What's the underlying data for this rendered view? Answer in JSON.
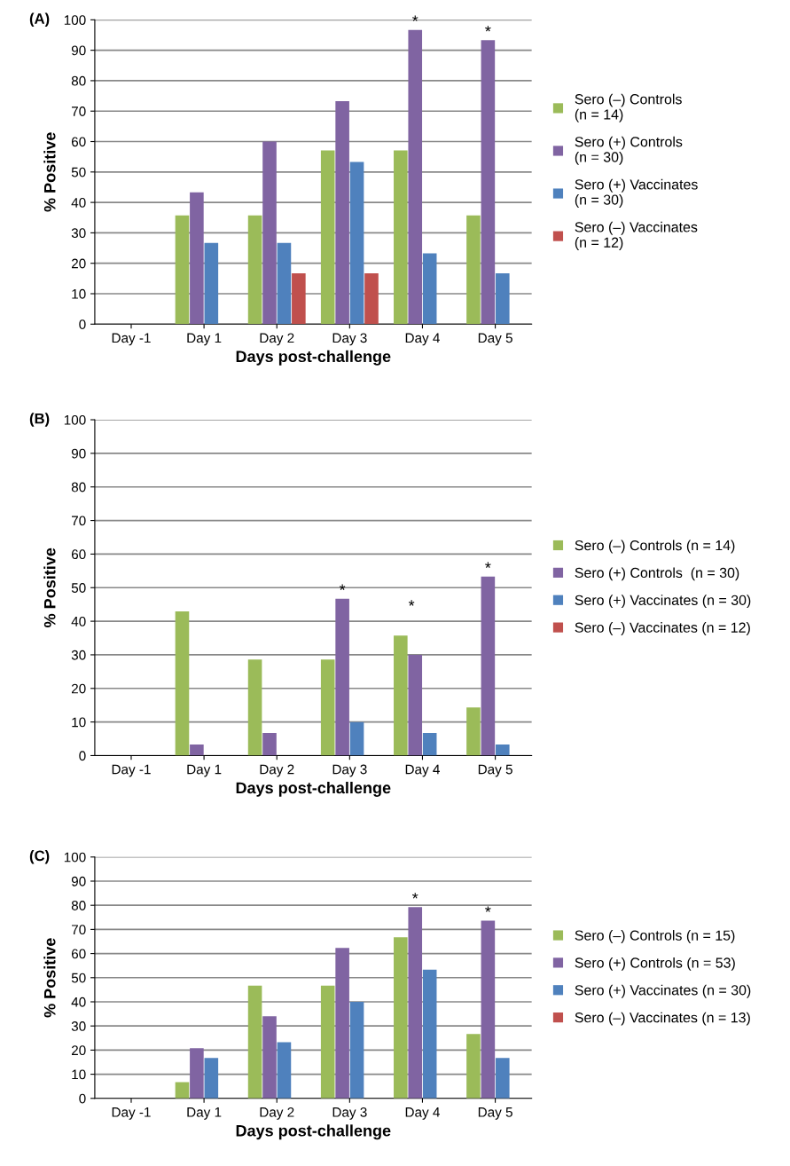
{
  "chart_data": [
    {
      "type": "bar",
      "title": "(A)",
      "xlabel": "Days post-challenge",
      "ylabel": "% Positive",
      "categories": [
        "Day -1",
        "Day 1",
        "Day 2",
        "Day 3",
        "Day 4",
        "Day 5"
      ],
      "ylim": [
        0,
        100
      ],
      "yticks": [
        0,
        10,
        20,
        30,
        40,
        50,
        60,
        70,
        80,
        90,
        100
      ],
      "grid": "y",
      "legend": "right",
      "series": [
        {
          "name": "Sero (–) Controls\n(n = 14)",
          "color": "#9bbb59",
          "values": [
            0,
            35.7,
            35.7,
            57.1,
            57.1,
            35.7
          ]
        },
        {
          "name": "Sero (+) Controls\n(n = 30)",
          "color": "#8064a2",
          "values": [
            0,
            43.3,
            60,
            73.3,
            96.7,
            93.3
          ]
        },
        {
          "name": "Sero (+) Vaccinates\n(n = 30)",
          "color": "#4f81bd",
          "values": [
            0,
            26.7,
            26.7,
            53.3,
            23.3,
            16.7
          ]
        },
        {
          "name": "Sero (–) Vaccinates\n(n = 12)",
          "color": "#c0504d",
          "values": [
            0,
            0,
            16.7,
            16.7,
            0,
            0
          ]
        }
      ],
      "annotations": [
        {
          "text": "*",
          "x": "Day 4",
          "y": 96.7
        },
        {
          "text": "*",
          "x": "Day 5",
          "y": 93.3
        }
      ]
    },
    {
      "type": "bar",
      "title": "(B)",
      "xlabel": "Days post-challenge",
      "ylabel": "% Positive",
      "categories": [
        "Day -1",
        "Day 1",
        "Day 2",
        "Day 3",
        "Day 4",
        "Day 5"
      ],
      "ylim": [
        0,
        100
      ],
      "yticks": [
        0,
        10,
        20,
        30,
        40,
        50,
        60,
        70,
        80,
        90,
        100
      ],
      "grid": "y",
      "legend": "right",
      "series": [
        {
          "name": "Sero (–) Controls (n = 14)",
          "color": "#9bbb59",
          "values": [
            0,
            42.9,
            28.6,
            28.6,
            35.7,
            14.3
          ]
        },
        {
          "name": "Sero (+) Controls  (n = 30)",
          "color": "#8064a2",
          "values": [
            0,
            3.3,
            6.7,
            46.7,
            30,
            53.3
          ]
        },
        {
          "name": "Sero (+) Vaccinates (n = 30)",
          "color": "#4f81bd",
          "values": [
            0,
            0,
            0,
            10,
            6.7,
            3.3
          ]
        },
        {
          "name": "Sero (–) Vaccinates (n = 12)",
          "color": "#c0504d",
          "values": [
            0,
            0,
            0,
            0,
            0,
            0
          ]
        }
      ],
      "annotations": [
        {
          "text": "*",
          "x": "Day 3",
          "y": 46.7
        },
        "*",
        {
          "text": "*",
          "x": "Day 5",
          "y": 53.3
        }
      ]
    },
    {
      "type": "bar",
      "title": "(C)",
      "xlabel": "Days post-challenge",
      "ylabel": "% Positive",
      "categories": [
        "Day -1",
        "Day 1",
        "Day 2",
        "Day 3",
        "Day 4",
        "Day 5"
      ],
      "ylim": [
        0,
        100
      ],
      "yticks": [
        0,
        10,
        20,
        30,
        40,
        50,
        60,
        70,
        80,
        90,
        100
      ],
      "grid": "y",
      "legend": "right",
      "series": [
        {
          "name": "Sero (–) Controls (n = 15)",
          "color": "#9bbb59",
          "values": [
            0,
            6.7,
            46.7,
            46.7,
            66.7,
            26.7
          ]
        },
        {
          "name": "Sero (+) Controls (n = 53)",
          "color": "#8064a2",
          "values": [
            0,
            20.8,
            34,
            62.3,
            79.2,
            73.6
          ]
        },
        {
          "name": "Sero (+) Vaccinates (n = 30)",
          "color": "#4f81bd",
          "values": [
            0,
            16.7,
            23.3,
            40,
            53.3,
            16.7
          ]
        },
        {
          "name": "Sero (–) Vaccinates (n = 13)",
          "color": "#c0504d",
          "values": [
            0,
            0,
            0,
            0,
            0,
            0
          ]
        }
      ],
      "annotations": [
        {
          "text": "*",
          "x": "Day 4",
          "y": 79.2
        },
        {
          "text": "*",
          "x": "Day 5",
          "y": 73.6
        }
      ]
    }
  ]
}
